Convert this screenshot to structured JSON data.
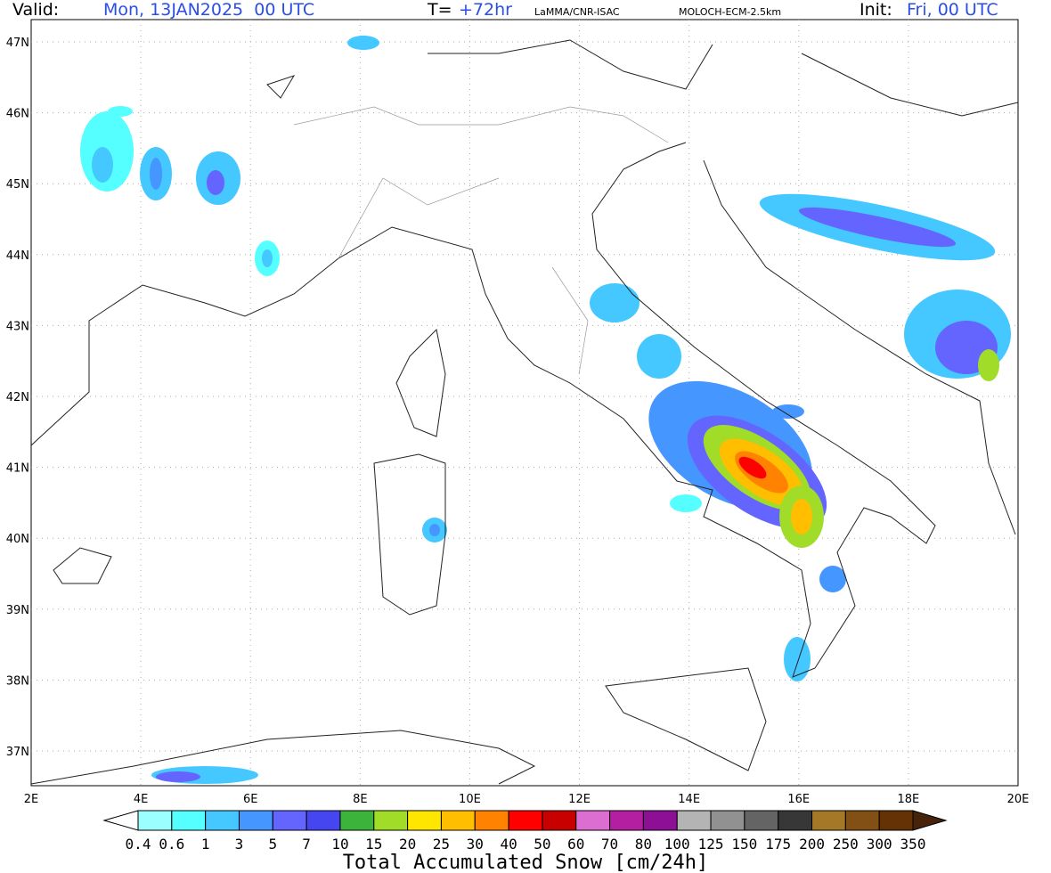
{
  "header": {
    "valid_label": "Valid:",
    "valid_value": "Mon, 13JAN2025  00 UTC",
    "t_label": "T=",
    "t_value": "+72hr",
    "source": "LaMMA/CNR-ISAC",
    "model": "MOLOCH-ECM-2.5km",
    "init_label": "Init:",
    "init_value": "Fri, 00 UTC"
  },
  "map": {
    "lat_labels": [
      "47N",
      "46N",
      "45N",
      "44N",
      "43N",
      "42N",
      "41N",
      "40N",
      "39N",
      "38N",
      "37N"
    ],
    "lon_labels": [
      "2E",
      "4E",
      "6E",
      "8E",
      "10E",
      "12E",
      "14E",
      "16E",
      "18E",
      "20E"
    ]
  },
  "colorbar": {
    "labels": [
      "0.4",
      "0.6",
      "1",
      "3",
      "5",
      "7",
      "10",
      "15",
      "20",
      "25",
      "30",
      "40",
      "50",
      "60",
      "70",
      "80",
      "100",
      "125",
      "150",
      "175",
      "200",
      "250",
      "300",
      "350"
    ],
    "colors": [
      "#9bffff",
      "#55ffff",
      "#44c8ff",
      "#4696ff",
      "#6464ff",
      "#4646f0",
      "#3cb43c",
      "#a0dc28",
      "#ffe600",
      "#ffbe00",
      "#ff8200",
      "#ff0000",
      "#c80000",
      "#dc6ed2",
      "#b41ea0",
      "#8c0f96",
      "#b4b4b4",
      "#919191",
      "#646464",
      "#373737",
      "#a57828",
      "#825014",
      "#643205"
    ],
    "under_color": "#ffffff",
    "over_color": "#46230a",
    "title": "Total Accumulated Snow [cm/24h]"
  }
}
